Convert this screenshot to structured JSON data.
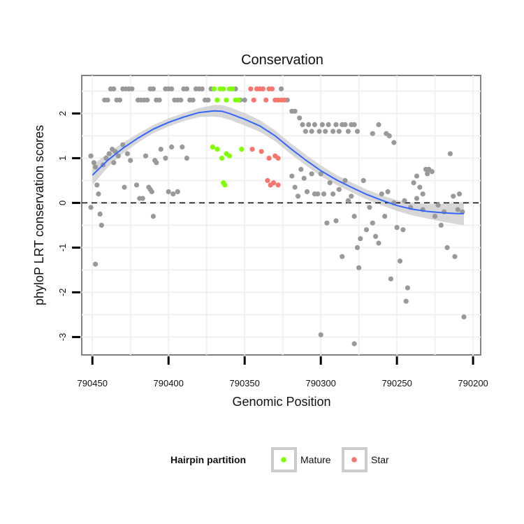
{
  "chart_data": {
    "type": "scatter",
    "title": "Conservation",
    "xlabel": "Genomic Position",
    "ylabel": "phyloP LRT conservation scores",
    "xlim": [
      790457,
      790195
    ],
    "ylim": [
      -3.4,
      2.85
    ],
    "x_reversed": true,
    "x_ticks": [
      790450,
      790400,
      790350,
      790300,
      790250,
      790200
    ],
    "x_tick_labels": [
      "790450",
      "790400",
      "790350",
      "790300",
      "790250",
      "790200"
    ],
    "y_ticks": [
      2,
      1,
      0,
      -1,
      -2,
      -3
    ],
    "y_tick_labels": [
      "2",
      "1",
      "0",
      "-1",
      "-2",
      "-3"
    ],
    "reference_line": {
      "y": 0,
      "style": "dashed"
    },
    "legend": {
      "title": "Hairpin partition",
      "entries": [
        {
          "label": "Mature",
          "color": "#7fff00"
        },
        {
          "label": "Star",
          "color": "#f8766d"
        }
      ]
    },
    "colors": {
      "other": "#999999",
      "Mature": "#7fff00",
      "Star": "#f8766d",
      "smooth": "#3366ff",
      "band": "#d0d0d0"
    },
    "smooth": {
      "x": [
        790450,
        790440,
        790430,
        790420,
        790410,
        790400,
        790390,
        790380,
        790370,
        790365,
        790360,
        790350,
        790340,
        790330,
        790320,
        790310,
        790300,
        790290,
        790280,
        790270,
        790260,
        790250,
        790240,
        790230,
        790220,
        790210,
        790206
      ],
      "y": [
        0.62,
        0.95,
        1.22,
        1.45,
        1.65,
        1.8,
        1.92,
        2.02,
        2.06,
        2.05,
        2.0,
        1.87,
        1.72,
        1.5,
        1.22,
        0.96,
        0.72,
        0.52,
        0.35,
        0.19,
        0.06,
        -0.06,
        -0.14,
        -0.19,
        -0.22,
        -0.24,
        -0.24
      ],
      "se": [
        0.22,
        0.16,
        0.12,
        0.1,
        0.09,
        0.09,
        0.09,
        0.1,
        0.13,
        0.14,
        0.14,
        0.14,
        0.13,
        0.12,
        0.12,
        0.12,
        0.12,
        0.11,
        0.11,
        0.11,
        0.11,
        0.12,
        0.14,
        0.16,
        0.2,
        0.24,
        0.26
      ]
    },
    "series": [
      {
        "name": "Other",
        "points": [
          [
            790451,
            1.05
          ],
          [
            790449,
            0.9
          ],
          [
            790448,
            0.8
          ],
          [
            790447,
            0.4
          ],
          [
            790446,
            0.2
          ],
          [
            790451,
            -0.1
          ],
          [
            790448,
            -1.37
          ],
          [
            790445,
            -0.25
          ],
          [
            790444,
            -0.5
          ],
          [
            790443,
            0.85
          ],
          [
            790441,
            1.0
          ],
          [
            790439,
            1.1
          ],
          [
            790437,
            1.2
          ],
          [
            790436,
            0.9
          ],
          [
            790435,
            1.15
          ],
          [
            790433,
            1.05
          ],
          [
            790430,
            1.3
          ],
          [
            790429,
            0.35
          ],
          [
            790427,
            1.1
          ],
          [
            790425,
            0.95
          ],
          [
            790421,
            0.4
          ],
          [
            790419,
            0.1
          ],
          [
            790417,
            0.1
          ],
          [
            790415,
            1.05
          ],
          [
            790413,
            0.35
          ],
          [
            790412,
            0.3
          ],
          [
            790411,
            0.25
          ],
          [
            790410,
            -0.3
          ],
          [
            790409,
            0.95
          ],
          [
            790408,
            0.9
          ],
          [
            790405,
            1.2
          ],
          [
            790402,
            1.0
          ],
          [
            790400,
            0.25
          ],
          [
            790398,
            1.25
          ],
          [
            790397,
            0.2
          ],
          [
            790394,
            0.25
          ],
          [
            790391,
            1.25
          ],
          [
            790388,
            1.0
          ],
          [
            790442,
            2.3
          ],
          [
            790440,
            2.3
          ],
          [
            790438,
            2.55
          ],
          [
            790436,
            2.55
          ],
          [
            790434,
            2.3
          ],
          [
            790432,
            2.3
          ],
          [
            790430,
            2.55
          ],
          [
            790428,
            2.55
          ],
          [
            790426,
            2.55
          ],
          [
            790424,
            2.55
          ],
          [
            790420,
            2.3
          ],
          [
            790418,
            2.3
          ],
          [
            790416,
            2.3
          ],
          [
            790414,
            2.3
          ],
          [
            790412,
            2.55
          ],
          [
            790410,
            2.55
          ],
          [
            790408,
            2.3
          ],
          [
            790406,
            2.3
          ],
          [
            790402,
            2.55
          ],
          [
            790400,
            2.55
          ],
          [
            790398,
            2.55
          ],
          [
            790396,
            2.3
          ],
          [
            790394,
            2.3
          ],
          [
            790392,
            2.3
          ],
          [
            790390,
            2.55
          ],
          [
            790388,
            2.55
          ],
          [
            790386,
            2.3
          ],
          [
            790384,
            2.3
          ],
          [
            790382,
            2.55
          ],
          [
            790380,
            2.55
          ],
          [
            790378,
            2.55
          ],
          [
            790376,
            2.3
          ],
          [
            790374,
            2.3
          ],
          [
            790372,
            2.55
          ],
          [
            790356,
            2.55
          ],
          [
            790353,
            2.3
          ],
          [
            790350,
            2.3
          ],
          [
            790326,
            2.55
          ],
          [
            790322,
            2.3
          ],
          [
            790319,
            2.05
          ],
          [
            790317,
            2.05
          ],
          [
            790314,
            1.9
          ],
          [
            790312,
            1.75
          ],
          [
            790310,
            1.6
          ],
          [
            790308,
            1.75
          ],
          [
            790306,
            1.6
          ],
          [
            790304,
            1.75
          ],
          [
            790301,
            1.6
          ],
          [
            790299,
            1.75
          ],
          [
            790297,
            1.6
          ],
          [
            790295,
            1.75
          ],
          [
            790292,
            1.6
          ],
          [
            790290,
            1.75
          ],
          [
            790288,
            1.6
          ],
          [
            790286,
            1.75
          ],
          [
            790284,
            1.75
          ],
          [
            790282,
            1.6
          ],
          [
            790280,
            1.75
          ],
          [
            790278,
            1.75
          ],
          [
            790276,
            1.6
          ],
          [
            790266,
            1.55
          ],
          [
            790262,
            1.75
          ],
          [
            790257,
            1.55
          ],
          [
            790255,
            1.5
          ],
          [
            790252,
            1.35
          ],
          [
            790319,
            0.6
          ],
          [
            790317,
            0.35
          ],
          [
            790315,
            0.15
          ],
          [
            790313,
            0.75
          ],
          [
            790311,
            0.55
          ],
          [
            790309,
            0.25
          ],
          [
            790306,
            0.65
          ],
          [
            790304,
            0.2
          ],
          [
            790302,
            0.2
          ],
          [
            790300,
            0.65
          ],
          [
            790298,
            0.2
          ],
          [
            790296,
            -0.45
          ],
          [
            790294,
            0.45
          ],
          [
            790292,
            0.2
          ],
          [
            790290,
            -0.4
          ],
          [
            790288,
            0.3
          ],
          [
            790286,
            -1.2
          ],
          [
            790284,
            0.5
          ],
          [
            790282,
            0.05
          ],
          [
            790280,
            0.15
          ],
          [
            790278,
            -0.3
          ],
          [
            790276,
            -1.0
          ],
          [
            790275,
            -1.45
          ],
          [
            790274,
            -0.8
          ],
          [
            790272,
            0.5
          ],
          [
            790270,
            -0.6
          ],
          [
            790268,
            -0.1
          ],
          [
            790266,
            -0.45
          ],
          [
            790264,
            -0.75
          ],
          [
            790262,
            -0.9
          ],
          [
            790260,
            0.2
          ],
          [
            790258,
            -0.3
          ],
          [
            790256,
            0.25
          ],
          [
            790254,
            -1.7
          ],
          [
            790252,
            0.0
          ],
          [
            790250,
            -0.55
          ],
          [
            790248,
            -1.3
          ],
          [
            790246,
            -0.6
          ],
          [
            790244,
            -2.2
          ],
          [
            790243,
            -1.9
          ],
          [
            790241,
            -0.1
          ],
          [
            790239,
            0.45
          ],
          [
            790237,
            0.1
          ],
          [
            790235,
            0.35
          ],
          [
            790233,
            0.2
          ],
          [
            790231,
            0.75
          ],
          [
            790229,
            0.75
          ],
          [
            790227,
            0.7
          ],
          [
            790225,
            -0.3
          ],
          [
            790223,
            -0.05
          ],
          [
            790221,
            -0.5
          ],
          [
            790219,
            -0.2
          ],
          [
            790217,
            -1.0
          ],
          [
            790215,
            1.1
          ],
          [
            790213,
            0.15
          ],
          [
            790212,
            -1.2
          ],
          [
            790210,
            -0.15
          ],
          [
            790209,
            0.2
          ],
          [
            790207,
            -0.2
          ],
          [
            790206,
            -2.55
          ],
          [
            790300,
            -2.95
          ],
          [
            790278,
            -3.15
          ],
          [
            790230,
            0.65
          ],
          [
            790237,
            0.6
          ],
          [
            790245,
            0.05
          ],
          [
            790233,
            -0.15
          ]
        ]
      },
      {
        "name": "Mature",
        "points": [
          [
            790370,
            2.55
          ],
          [
            790368,
            2.3
          ],
          [
            790366,
            2.55
          ],
          [
            790364,
            2.55
          ],
          [
            790362,
            2.3
          ],
          [
            790360,
            2.55
          ],
          [
            790358,
            2.55
          ],
          [
            790356,
            2.3
          ],
          [
            790354,
            2.3
          ],
          [
            790371,
            1.25
          ],
          [
            790368,
            1.2
          ],
          [
            790365,
            1.0
          ],
          [
            790364,
            0.45
          ],
          [
            790363,
            0.4
          ],
          [
            790362,
            1.1
          ],
          [
            790360,
            1.05
          ],
          [
            790352,
            1.2
          ]
        ]
      },
      {
        "name": "Star",
        "points": [
          [
            790346,
            2.55
          ],
          [
            790344,
            2.3
          ],
          [
            790342,
            2.55
          ],
          [
            790340,
            2.55
          ],
          [
            790338,
            2.55
          ],
          [
            790336,
            2.3
          ],
          [
            790334,
            2.55
          ],
          [
            790332,
            2.55
          ],
          [
            790330,
            2.3
          ],
          [
            790328,
            2.3
          ],
          [
            790326,
            2.3
          ],
          [
            790324,
            2.3
          ],
          [
            790345,
            1.2
          ],
          [
            790339,
            1.15
          ],
          [
            790335,
            0.5
          ],
          [
            790334,
            1.0
          ],
          [
            790333,
            0.4
          ],
          [
            790331,
            0.45
          ],
          [
            790330,
            1.05
          ],
          [
            790328,
            1.0
          ],
          [
            790328,
            0.4
          ]
        ]
      }
    ]
  }
}
